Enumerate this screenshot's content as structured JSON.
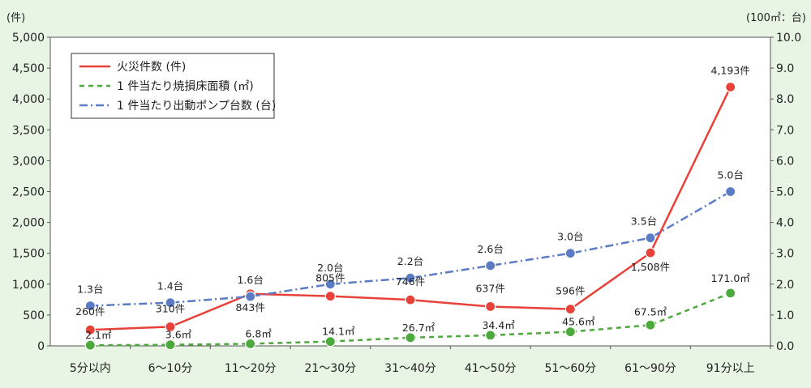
{
  "chart_data": {
    "type": "line",
    "categories": [
      "5分以内",
      "6～10分",
      "11～20分",
      "21～30分",
      "31～40分",
      "41～50分",
      "51～60分",
      "61～90分",
      "91分以上"
    ],
    "y_left": {
      "unit": "(件)",
      "ylim": [
        0,
        5000
      ],
      "ticks": [
        "0",
        "500",
        "1,000",
        "1,500",
        "2,000",
        "2,500",
        "3,000",
        "3,500",
        "4,000",
        "4,500",
        "5,000"
      ]
    },
    "y_right": {
      "unit": "(100㎡：台)",
      "ylim": [
        0,
        10
      ],
      "ticks": [
        "0.0",
        "1.0",
        "2.0",
        "3.0",
        "4.0",
        "5.0",
        "6.0",
        "7.0",
        "8.0",
        "9.0",
        "10.0"
      ]
    },
    "grid": true,
    "legend_position": "top-left",
    "series": [
      {
        "name": "火災件数 (件)",
        "axis": "left",
        "color": "#e8413a",
        "dash": "solid",
        "values": [
          260,
          310,
          843,
          805,
          746,
          637,
          596,
          1508,
          4193
        ],
        "labels": [
          "260件",
          "310件",
          "843件",
          "805件",
          "746件",
          "637件",
          "596件",
          "1,508件",
          "4,193件"
        ]
      },
      {
        "name": "1 件当たり焼損床面積 (㎡)",
        "axis": "right",
        "color": "#4caa3c",
        "dash": "dashed",
        "values": [
          0.021,
          0.036,
          0.068,
          0.141,
          0.267,
          0.344,
          0.456,
          0.675,
          1.71
        ],
        "labels": [
          "2.1㎡",
          "3.6㎡",
          "6.8㎡",
          "14.1㎡",
          "26.7㎡",
          "34.4㎡",
          "45.6㎡",
          "67.5㎡",
          "171.0㎡"
        ]
      },
      {
        "name": "1 件当たり出動ポンプ台数 (台)",
        "axis": "right",
        "color": "#5b7cc4",
        "dash": "dashdot",
        "values": [
          1.3,
          1.4,
          1.6,
          2.0,
          2.2,
          2.6,
          3.0,
          3.5,
          5.0
        ],
        "labels": [
          "1.3台",
          "1.4台",
          "1.6台",
          "2.0台",
          "2.2台",
          "2.6台",
          "3.0台",
          "3.5台",
          "5.0台"
        ]
      }
    ]
  }
}
